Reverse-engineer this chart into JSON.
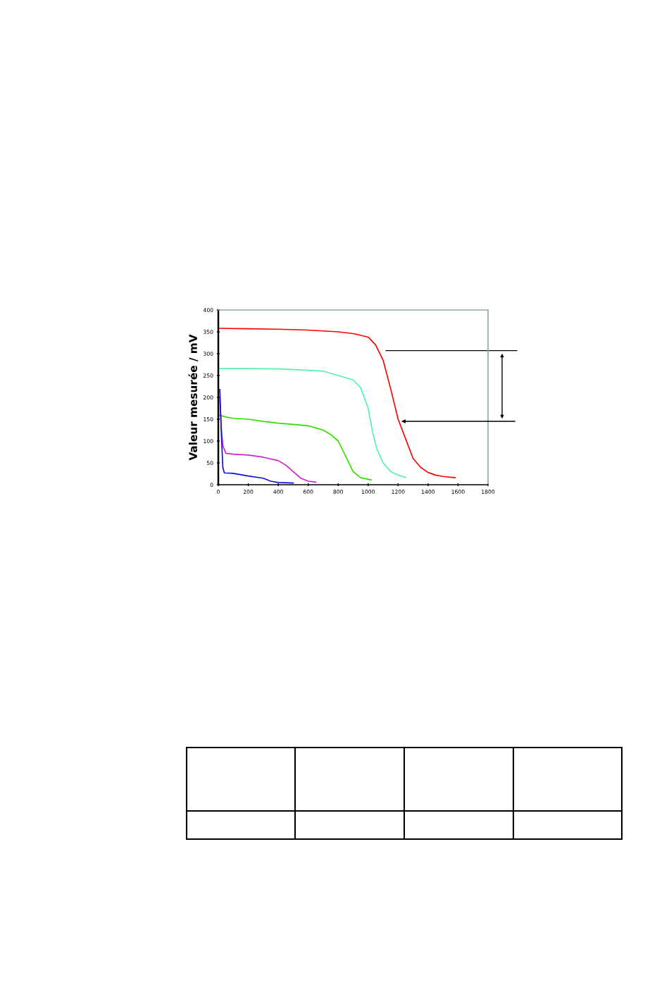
{
  "chart_data": {
    "type": "line",
    "ylabel": "Valeur mesurée / mV",
    "xlim": [
      0,
      1800
    ],
    "ylim": [
      0,
      400
    ],
    "xticks": [
      0,
      200,
      400,
      600,
      800,
      1000,
      1200,
      1400,
      1600,
      1800
    ],
    "yticks": [
      0,
      50,
      100,
      150,
      200,
      250,
      300,
      350,
      400
    ],
    "grid": false,
    "ref_lines": [
      {
        "axis": "y",
        "value": 307,
        "color": "#000000",
        "line_style": "solid"
      }
    ],
    "marker": "none",
    "line_style": "solid",
    "series": [
      {
        "color": "#ff0000",
        "x": [
          0,
          200,
          400,
          600,
          800,
          900,
          1000,
          1050,
          1100,
          1150,
          1200,
          1250,
          1300,
          1350,
          1400,
          1450,
          1500,
          1580
        ],
        "values": [
          358,
          357,
          356,
          354,
          350,
          346,
          338,
          320,
          285,
          220,
          150,
          105,
          60,
          40,
          28,
          22,
          19,
          16
        ]
      },
      {
        "color": "#55f2b0",
        "x": [
          0,
          200,
          400,
          600,
          700,
          800,
          900,
          950,
          1000,
          1030,
          1060,
          1100,
          1150,
          1200,
          1250
        ],
        "values": [
          266,
          266,
          265,
          262,
          260,
          250,
          240,
          222,
          175,
          120,
          80,
          50,
          30,
          22,
          17
        ]
      },
      {
        "color": "#33dd00",
        "x": [
          0,
          50,
          100,
          200,
          300,
          400,
          500,
          600,
          650,
          700,
          750,
          800,
          850,
          900,
          950,
          1020
        ],
        "values": [
          160,
          155,
          152,
          150,
          145,
          141,
          138,
          135,
          130,
          125,
          115,
          100,
          65,
          30,
          16,
          11
        ]
      },
      {
        "color": "#cc22cc",
        "x": [
          10,
          20,
          30,
          50,
          100,
          200,
          300,
          400,
          450,
          500,
          550,
          600,
          650
        ],
        "values": [
          200,
          130,
          90,
          72,
          70,
          68,
          63,
          55,
          45,
          30,
          15,
          8,
          6
        ]
      },
      {
        "color": "#1010dd",
        "x": [
          10,
          20,
          30,
          40,
          100,
          200,
          300,
          350,
          400,
          500
        ],
        "values": [
          218,
          120,
          40,
          27,
          26,
          20,
          15,
          8,
          5,
          4
        ]
      }
    ]
  }
}
